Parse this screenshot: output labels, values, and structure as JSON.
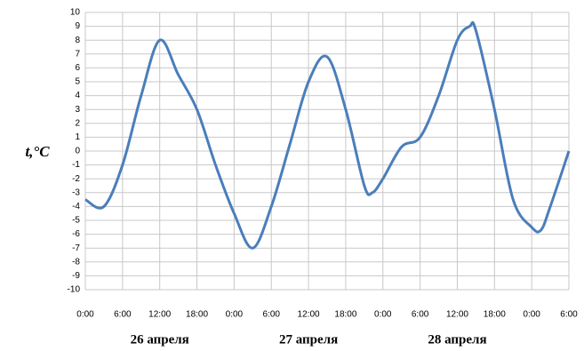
{
  "chart_data": {
    "type": "line",
    "y_label": "t,°C",
    "x": [
      0,
      3,
      6,
      9,
      12,
      15,
      18,
      21,
      24,
      27,
      30,
      33,
      36,
      39,
      42,
      45,
      46.3,
      48,
      51,
      54,
      57,
      60,
      62,
      63,
      66,
      69,
      72,
      73.5,
      75,
      78
    ],
    "series": [
      {
        "name": "t",
        "color": "#4a7ebb",
        "values": [
          -3.5,
          -4,
          -1,
          4,
          8,
          5.5,
          3,
          -1,
          -4.5,
          -7,
          -4,
          0.5,
          5,
          6.8,
          3,
          -2.5,
          -3,
          -2,
          0.3,
          1,
          4,
          8,
          9,
          8.7,
          3,
          -3.5,
          -5.5,
          -5.7,
          -4,
          0
        ]
      }
    ],
    "xlim": [
      0,
      78
    ],
    "xticks": [
      {
        "value": 0,
        "label": "0:00"
      },
      {
        "value": 6,
        "label": "6:00"
      },
      {
        "value": 12,
        "label": "12:00"
      },
      {
        "value": 18,
        "label": "18:00"
      },
      {
        "value": 24,
        "label": "0:00"
      },
      {
        "value": 30,
        "label": "6:00"
      },
      {
        "value": 36,
        "label": "12:00"
      },
      {
        "value": 42,
        "label": "18:00"
      },
      {
        "value": 48,
        "label": "0:00"
      },
      {
        "value": 54,
        "label": "6:00"
      },
      {
        "value": 60,
        "label": "12:00"
      },
      {
        "value": 66,
        "label": "18:00"
      },
      {
        "value": 72,
        "label": "0:00"
      },
      {
        "value": 78,
        "label": "6:00"
      }
    ],
    "ylim": [
      -10,
      10
    ],
    "yticks": [
      -10,
      -9,
      -8,
      -7,
      -6,
      -5,
      -4,
      -3,
      -2,
      -1,
      0,
      1,
      2,
      3,
      4,
      5,
      6,
      7,
      8,
      9,
      10
    ],
    "grid": true,
    "annotations": [
      {
        "text": "26 апреля",
        "x": 12
      },
      {
        "text": "27 апреля",
        "x": 36
      },
      {
        "text": "28 апреля",
        "x": 60
      }
    ]
  }
}
